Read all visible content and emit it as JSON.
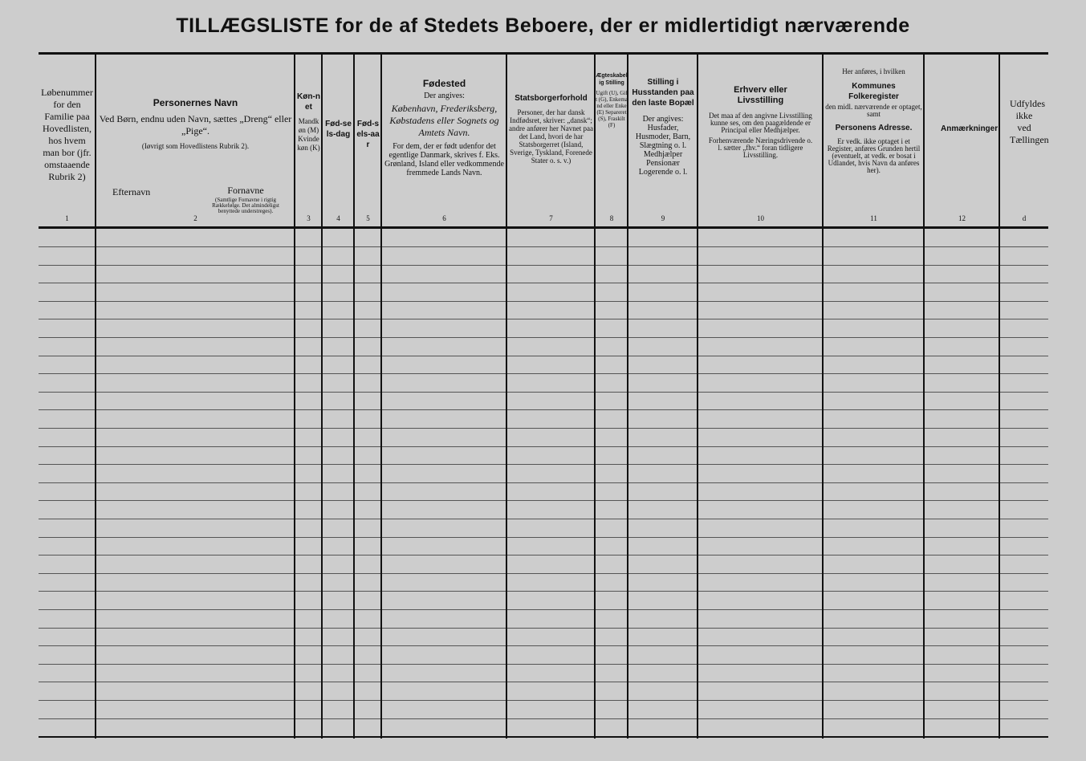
{
  "title": "TILLÆGSLISTE for de af Stedets Beboere, der er midlertidigt nærværende",
  "columns": [
    {
      "num": "1",
      "text": "Løbenummer for den Familie paa Hovedlisten, hos hvem man bor (jfr. omstaaende Rubrik 2)"
    },
    {
      "num": "2",
      "heading": "Personernes Navn",
      "text": "Ved Børn, endnu uden Navn, sættes „Dreng“ eller „Pige“.",
      "note": "(Iøvrigt som Hovedlistens Rubrik 2).",
      "sub1": "Efternavn",
      "sub2": "Fornavne",
      "sub2_note": "(Samtlige Fornavne i rigtig Rækkefølge. Det almindeligst benyttede understreges)."
    },
    {
      "num": "3",
      "heading": "Køn-net",
      "text": "Mandkøn (M) Kvindekøn (K)"
    },
    {
      "num": "4",
      "heading": "Fød-sels-dag"
    },
    {
      "num": "5",
      "heading": "Fød-sels-aar"
    },
    {
      "num": "6",
      "heading": "Fødested",
      "text": "Der angives:",
      "italic": "København, Frederiksberg, Købstadens eller Sognets og Amtets Navn.",
      "text2": "For dem, der er født udenfor det egentlige Danmark, skrives f. Eks. Grønland, Island eller vedkommende fremmede Lands Navn."
    },
    {
      "num": "7",
      "heading": "Statsborgerforhold",
      "text": "Personer, der har dansk Indfødsret, skriver: „dansk“; andre anfører her Navnet paa det Land, hvori de har Statsborgerret (Island, Sverige, Tyskland, Forenede Stater o. s. v.)"
    },
    {
      "num": "8",
      "heading": "Ægteskabelig Stilling",
      "text": "Ugift (U), Gift (G), Enkemand eller Enke (E) Separeret (S), Fraskilt (F)"
    },
    {
      "num": "9",
      "heading": "Stilling i Husstanden paa den laste Bopæl",
      "text": "Der angives: Husfader, Husmoder, Barn, Slægtning o. l. Medhjælper Pensionær Logerende o. l."
    },
    {
      "num": "10",
      "heading": "Erhverv eller Livsstilling",
      "text": "Det maa af den angivne Livsstilling kunne ses, om den paagældende er Principal eller Medhjælper.",
      "text2": "Forhenværende Næringsdrivende o. l. sætter „fhv.“ foran tidligere Livsstilling."
    },
    {
      "num": "11",
      "pre": "Her anføres, i hvilken",
      "heading": "Kommunes Folkeregister",
      "text": "den midl. nærværende er optaget, samt",
      "heading2": "Personens Adresse.",
      "text2": "Er vedk. ikke optaget i et Register, anføres Grunden hertil (eventuelt, at vedk. er bosat i Udlandet, hvis Navn da anføres her)."
    },
    {
      "num": "12",
      "heading": "Anmærkninger"
    },
    {
      "num": "d",
      "text": "Udfyldes ikke ved Tællingen"
    }
  ]
}
